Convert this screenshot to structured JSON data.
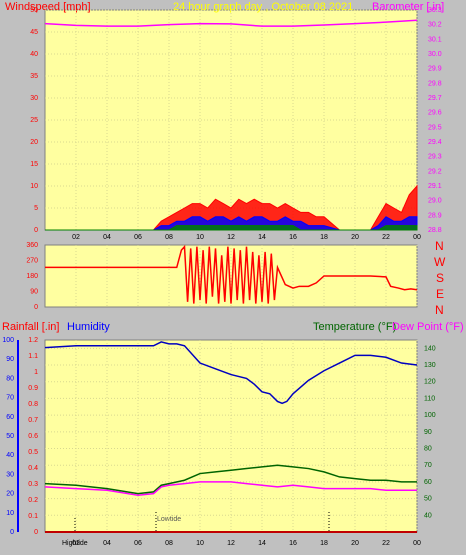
{
  "header": {
    "windspeed_label": "Windspeed [mph]",
    "title": "24 hour graph day , October 08 2021",
    "barometer_label": "Barometer [.in]"
  },
  "lower_header": {
    "rainfall_label": "Rainfall [.in]",
    "humidity_label": "Humidity",
    "temperature_label": "Temperature (°F)",
    "dewpoint_label": "Dew Point (°F)"
  },
  "x_ticks": [
    "02",
    "04",
    "06",
    "08",
    "10",
    "12",
    "14",
    "16",
    "18",
    "20",
    "22",
    "00"
  ],
  "wind_dir_labels": [
    "N",
    "W",
    "S",
    "E",
    "N"
  ],
  "tide_labels": {
    "high": "Hightide",
    "low": "Lowtide"
  },
  "colors": {
    "plot_bg": "#ffffa0",
    "windspeed": "#ff0000",
    "gust_blue": "#0000ff",
    "gust_green": "#008000",
    "barometer": "#ff00ff",
    "direction": "#ff0000",
    "humidity": "#0000c0",
    "temperature": "#006400",
    "dewpoint": "#ff00ff",
    "rainfall": "#c00000"
  },
  "chart_data": [
    {
      "id": "windspeed",
      "type": "area",
      "ylim": [
        0,
        50
      ],
      "yticks": [
        0,
        5,
        10,
        15,
        20,
        25,
        30,
        35,
        40,
        45,
        50
      ],
      "x": [
        0,
        2,
        4,
        6,
        7,
        7.5,
        8,
        8.5,
        9,
        9.5,
        10,
        10.5,
        11,
        11.5,
        12,
        12.5,
        13,
        13.5,
        14,
        14.5,
        15,
        15.5,
        16,
        16.5,
        17,
        17.5,
        18,
        19,
        20,
        21,
        21.5,
        22,
        22.5,
        23,
        23.5,
        24
      ],
      "series": [
        {
          "values": [
            0,
            0,
            0,
            0,
            0,
            2,
            3,
            4,
            5,
            6,
            6,
            5,
            7,
            6,
            5,
            7,
            6,
            7,
            6,
            6,
            5,
            6,
            5,
            4,
            4,
            3,
            3,
            0,
            0,
            0,
            3,
            6,
            5,
            4,
            8,
            10
          ]
        },
        {
          "values": [
            0,
            0,
            0,
            0,
            0,
            1,
            1,
            2,
            2,
            3,
            3,
            2,
            3,
            3,
            2,
            3,
            2,
            3,
            3,
            2,
            2,
            3,
            2,
            2,
            1,
            1,
            1,
            0,
            0,
            0,
            1,
            3,
            2,
            2,
            3,
            3
          ]
        },
        {
          "values": [
            0,
            0,
            0,
            0,
            0,
            0,
            0,
            1,
            1,
            1,
            1,
            1,
            1,
            1,
            1,
            1,
            1,
            1,
            1,
            1,
            1,
            1,
            1,
            0,
            0,
            0,
            0,
            0,
            0,
            0,
            0,
            1,
            1,
            1,
            1,
            1
          ]
        }
      ]
    },
    {
      "id": "barometer",
      "type": "line",
      "ylim": [
        28.8,
        30.3
      ],
      "yticks": [
        28.8,
        28.9,
        29.0,
        29.1,
        29.2,
        29.3,
        29.4,
        29.5,
        29.6,
        29.7,
        29.8,
        29.9,
        30.0,
        30.1,
        30.2,
        30.3
      ],
      "x": [
        0,
        2,
        4,
        6,
        8,
        10,
        12,
        14,
        16,
        18,
        20,
        22,
        24
      ],
      "values": [
        30.207,
        30.195,
        30.19,
        30.19,
        30.2,
        30.207,
        30.205,
        30.19,
        30.19,
        30.198,
        30.207,
        30.217,
        30.23
      ]
    },
    {
      "id": "wind_direction",
      "type": "line",
      "ylim": [
        0,
        360
      ],
      "yticks": [
        0,
        90,
        180,
        270,
        360
      ],
      "x": [
        0,
        8.5,
        8.8,
        9.0,
        9.2,
        9.4,
        9.6,
        9.8,
        10.0,
        10.2,
        10.4,
        10.6,
        10.8,
        11.0,
        11.2,
        11.4,
        11.6,
        11.8,
        12.0,
        12.2,
        12.4,
        12.6,
        12.8,
        13.0,
        13.2,
        13.4,
        13.6,
        13.8,
        14.0,
        14.2,
        14.4,
        14.6,
        14.8,
        15.0,
        15.5,
        16.0,
        16.4,
        17.0,
        17.5,
        18.0,
        19.0,
        20.0,
        21.0,
        22.0,
        22.3,
        22.8,
        23.2,
        23.6,
        24.0
      ],
      "values": [
        230,
        230,
        330,
        350,
        30,
        340,
        20,
        350,
        40,
        330,
        20,
        350,
        60,
        340,
        20,
        300,
        30,
        350,
        20,
        340,
        40,
        330,
        20,
        350,
        40,
        320,
        20,
        300,
        30,
        320,
        20,
        310,
        40,
        230,
        130,
        110,
        120,
        120,
        140,
        180,
        180,
        180,
        180,
        175,
        120,
        110,
        100,
        105,
        100
      ]
    },
    {
      "id": "humidity",
      "type": "line",
      "ylim": [
        0,
        100
      ],
      "yticks": [
        0,
        10,
        20,
        30,
        40,
        50,
        60,
        70,
        80,
        90,
        100
      ],
      "x": [
        0,
        2,
        4,
        6,
        7,
        7.5,
        8,
        8.5,
        9,
        10,
        11,
        12,
        13,
        13.5,
        14,
        14.5,
        15,
        15.3,
        15.6,
        16,
        17,
        18,
        19,
        20,
        21,
        22,
        23,
        24
      ],
      "values": [
        96,
        97,
        97,
        97,
        97,
        99,
        98,
        98,
        97,
        88,
        85,
        82,
        80,
        77,
        73,
        72,
        68,
        67,
        68,
        72,
        79,
        84,
        88,
        92,
        92,
        91,
        88,
        87
      ]
    },
    {
      "id": "rainfall",
      "type": "line",
      "ylim": [
        0,
        1.2
      ],
      "yticks": [
        0,
        0.1,
        0.2,
        0.3,
        0.4,
        0.5,
        0.6,
        0.7,
        0.8,
        0.9,
        1.0,
        1.1,
        1.2
      ],
      "x": [
        0,
        24
      ],
      "values": [
        0,
        0
      ]
    },
    {
      "id": "temperature",
      "type": "line",
      "ylim": [
        30,
        145
      ],
      "yticks": [
        40,
        50,
        60,
        70,
        80,
        90,
        100,
        110,
        120,
        130,
        140
      ],
      "x": [
        0,
        2,
        4,
        6,
        7,
        7.5,
        8,
        9,
        10,
        11,
        12,
        13,
        14,
        15,
        16,
        17,
        18,
        19,
        20,
        21,
        22,
        23,
        24
      ],
      "values": [
        59,
        58,
        56,
        53,
        54,
        58,
        59,
        61,
        65,
        66,
        67,
        68,
        69,
        70,
        69,
        68,
        66,
        63,
        62,
        61,
        61,
        60,
        60
      ]
    },
    {
      "id": "dewpoint",
      "type": "line",
      "ylim": [
        30,
        145
      ],
      "yticks": [
        40,
        50,
        60,
        70,
        80,
        90,
        100,
        110,
        120,
        130,
        140
      ],
      "x": [
        0,
        2,
        4,
        6,
        7,
        7.5,
        8,
        9,
        10,
        11,
        12,
        13,
        14,
        15,
        16,
        17,
        18,
        19,
        20,
        21,
        22,
        23,
        24
      ],
      "values": [
        57,
        56,
        55,
        52,
        53,
        57,
        58,
        59,
        60,
        60,
        60,
        59,
        58,
        57,
        58,
        57,
        56,
        56,
        56,
        56,
        55,
        55,
        55
      ]
    }
  ]
}
